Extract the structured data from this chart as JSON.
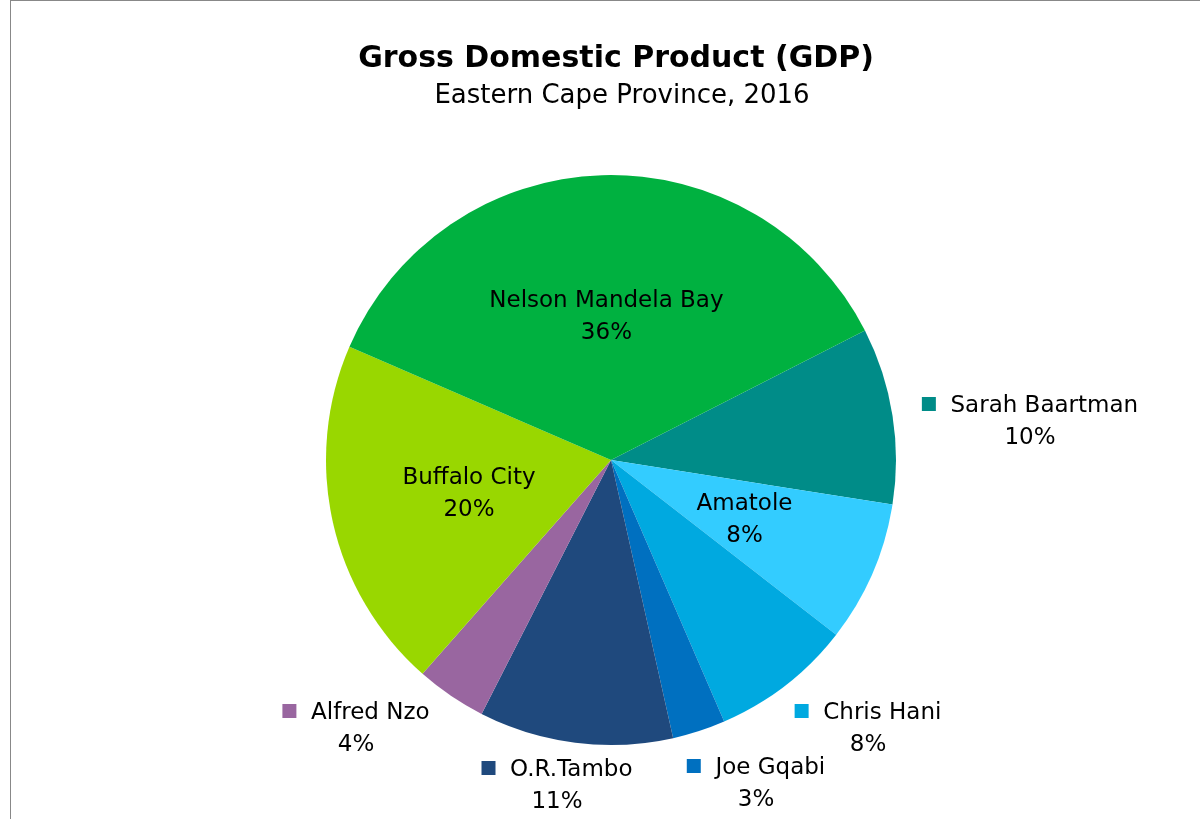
{
  "chart_data": {
    "type": "pie",
    "title": "Gross Domestic Product (GDP)",
    "subtitle": "Eastern Cape Province, 2016",
    "categories": [
      "Sarah Baartman",
      "Amatole",
      "Chris Hani",
      "Joe Gqabi",
      "O.R.Tambo",
      "Alfred Nzo",
      "Buffalo City",
      "Nelson Mandela Bay"
    ],
    "values": [
      10,
      8,
      8,
      3,
      11,
      4,
      20,
      36
    ],
    "value_labels": [
      "10%",
      "8%",
      "8%",
      "3%",
      "11%",
      "4%",
      "20%",
      "36%"
    ],
    "colors": [
      "#008c88",
      "#33ccff",
      "#00a9e0",
      "#0070c0",
      "#1f497d",
      "#9966a0",
      "#99d700",
      "#00b140"
    ],
    "legend": "bottom right"
  }
}
